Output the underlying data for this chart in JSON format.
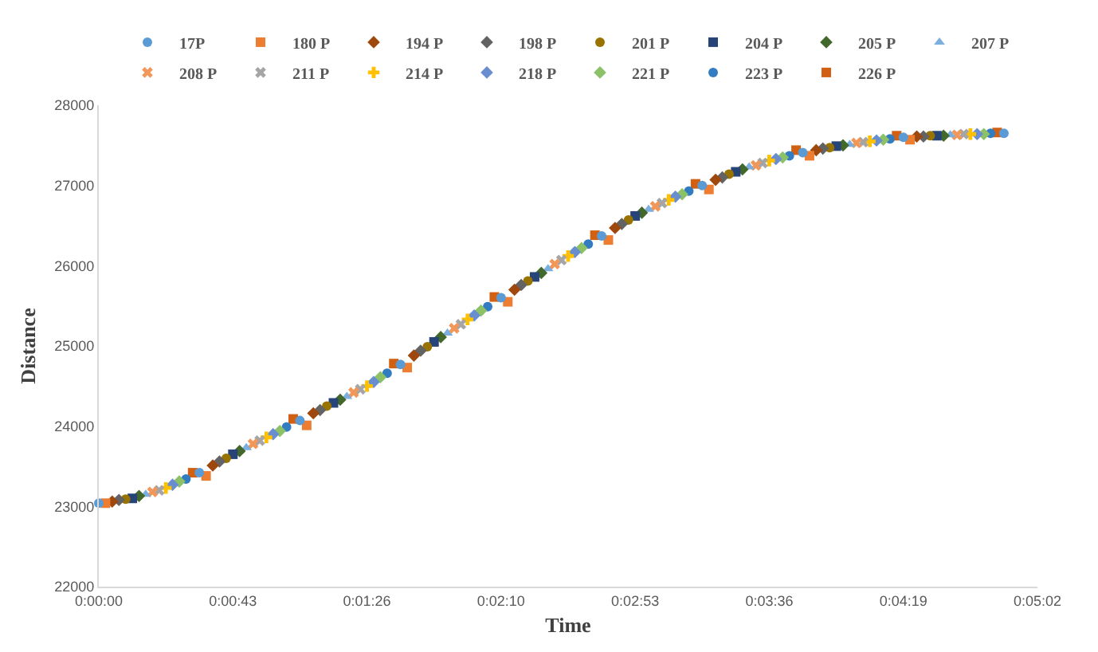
{
  "chart_data": {
    "type": "scatter",
    "xlabel": "Time",
    "ylabel": "Distance",
    "legend": "top",
    "grid": false,
    "xlim": [
      0,
      0.084
    ],
    "xticks": [
      {
        "value": 0,
        "label": "0:00:00"
      },
      {
        "value": 0.012,
        "label": "0:00:43"
      },
      {
        "value": 0.024,
        "label": "0:01:26"
      },
      {
        "value": 0.036,
        "label": "0:02:10"
      },
      {
        "value": 0.048,
        "label": "0:02:53"
      },
      {
        "value": 0.06,
        "label": "0:03:36"
      },
      {
        "value": 0.072,
        "label": "0:04:19"
      },
      {
        "value": 0.084,
        "label": "0:05:02"
      }
    ],
    "ylim": [
      22000,
      28000
    ],
    "yticks": [
      22000,
      23000,
      24000,
      25000,
      26000,
      27000,
      28000
    ],
    "series": [
      {
        "name": "17P",
        "color": "#5b9bd5",
        "marker": "circle",
        "x": [
          0,
          0.009,
          0.018,
          0.027,
          0.036,
          0.045,
          0.054,
          0.063,
          0.072,
          0.081
        ],
        "values": [
          23040,
          23420,
          24070,
          24770,
          25600,
          26370,
          27000,
          27410,
          27600,
          27650
        ]
      },
      {
        "name": "180 P",
        "color": "#ed7d31",
        "marker": "square",
        "x": [
          0.0006,
          0.0096,
          0.0186,
          0.0276,
          0.0366,
          0.0456,
          0.0546,
          0.0636,
          0.0726
        ],
        "values": [
          23040,
          23380,
          24010,
          24730,
          25550,
          26320,
          26950,
          27370,
          27570
        ]
      },
      {
        "name": "194 P",
        "color": "#9e480e",
        "marker": "diamond",
        "x": [
          0.0012,
          0.0102,
          0.0192,
          0.0282,
          0.0372,
          0.0462,
          0.0552,
          0.0642,
          0.0732
        ],
        "values": [
          23060,
          23510,
          24160,
          24880,
          25700,
          26470,
          27070,
          27440,
          27610
        ]
      },
      {
        "name": "198 P",
        "color": "#636363",
        "marker": "diamond",
        "x": [
          0.0018,
          0.0108,
          0.0198,
          0.0288,
          0.0378,
          0.0468,
          0.0558,
          0.0648,
          0.0738
        ],
        "values": [
          23080,
          23560,
          24200,
          24940,
          25760,
          26520,
          27100,
          27460,
          27610
        ]
      },
      {
        "name": "201 P",
        "color": "#997300",
        "marker": "circle",
        "x": [
          0.0024,
          0.0114,
          0.0204,
          0.0294,
          0.0384,
          0.0474,
          0.0564,
          0.0654,
          0.0744
        ],
        "values": [
          23090,
          23600,
          24250,
          24990,
          25810,
          26570,
          27140,
          27470,
          27620
        ]
      },
      {
        "name": "204 P",
        "color": "#264478",
        "marker": "square",
        "x": [
          0.003,
          0.012,
          0.021,
          0.03,
          0.039,
          0.048,
          0.057,
          0.066,
          0.075
        ],
        "values": [
          23100,
          23650,
          24290,
          25050,
          25860,
          26620,
          27170,
          27490,
          27620
        ]
      },
      {
        "name": "205 P",
        "color": "#43682b",
        "marker": "diamond",
        "x": [
          0.0036,
          0.0126,
          0.0216,
          0.0306,
          0.0396,
          0.0486,
          0.0576,
          0.0666,
          0.0756
        ],
        "values": [
          23130,
          23690,
          24330,
          25110,
          25910,
          26660,
          27200,
          27500,
          27620
        ]
      },
      {
        "name": "207 P",
        "color": "#7cafdd",
        "marker": "triangle",
        "x": [
          0.0042,
          0.0132,
          0.0222,
          0.0312,
          0.0402,
          0.0492,
          0.0582,
          0.0672,
          0.0762
        ],
        "values": [
          23150,
          23730,
          24370,
          25160,
          25960,
          26700,
          27230,
          27510,
          27630
        ]
      },
      {
        "name": "208 P",
        "color": "#f1975a",
        "marker": "x",
        "x": [
          0.0048,
          0.0138,
          0.0228,
          0.0318,
          0.0408,
          0.0498,
          0.0588,
          0.0678,
          0.0768
        ],
        "values": [
          23180,
          23780,
          24420,
          25220,
          26020,
          26740,
          27250,
          27530,
          27630
        ]
      },
      {
        "name": "211 P",
        "color": "#a5a5a5",
        "marker": "x",
        "x": [
          0.0054,
          0.0144,
          0.0234,
          0.0324,
          0.0414,
          0.0504,
          0.0594,
          0.0684,
          0.0774
        ],
        "values": [
          23200,
          23820,
          24460,
          25270,
          26070,
          26780,
          27280,
          27540,
          27640
        ]
      },
      {
        "name": "214 P",
        "color": "#ffc000",
        "marker": "cross",
        "x": [
          0.006,
          0.015,
          0.024,
          0.033,
          0.042,
          0.051,
          0.06,
          0.069,
          0.078
        ],
        "values": [
          23230,
          23860,
          24500,
          25330,
          26120,
          26820,
          27310,
          27550,
          27640
        ]
      },
      {
        "name": "218 P",
        "color": "#698ed0",
        "marker": "diamond",
        "x": [
          0.0066,
          0.0156,
          0.0246,
          0.0336,
          0.0426,
          0.0516,
          0.0606,
          0.0696,
          0.0786
        ],
        "values": [
          23270,
          23900,
          24550,
          25380,
          26170,
          26860,
          27330,
          27560,
          27640
        ]
      },
      {
        "name": "221 P",
        "color": "#8cc168",
        "marker": "diamond",
        "x": [
          0.0072,
          0.0162,
          0.0252,
          0.0342,
          0.0432,
          0.0522,
          0.0612,
          0.0702,
          0.0792
        ],
        "values": [
          23310,
          23940,
          24610,
          25440,
          26220,
          26890,
          27350,
          27570,
          27640
        ]
      },
      {
        "name": "223 P",
        "color": "#327dc2",
        "marker": "circle",
        "x": [
          0.0078,
          0.0168,
          0.0258,
          0.0348,
          0.0438,
          0.0528,
          0.0618,
          0.0708,
          0.0798
        ],
        "values": [
          23340,
          23990,
          24660,
          25490,
          26270,
          26930,
          27370,
          27580,
          27650
        ]
      },
      {
        "name": "226 P",
        "color": "#d26012",
        "marker": "square",
        "x": [
          0.0084,
          0.0174,
          0.0264,
          0.0354,
          0.0444,
          0.0534,
          0.0624,
          0.0714,
          0.0804
        ],
        "values": [
          23420,
          24090,
          24780,
          25610,
          26380,
          27020,
          27440,
          27620,
          27660
        ]
      }
    ]
  }
}
